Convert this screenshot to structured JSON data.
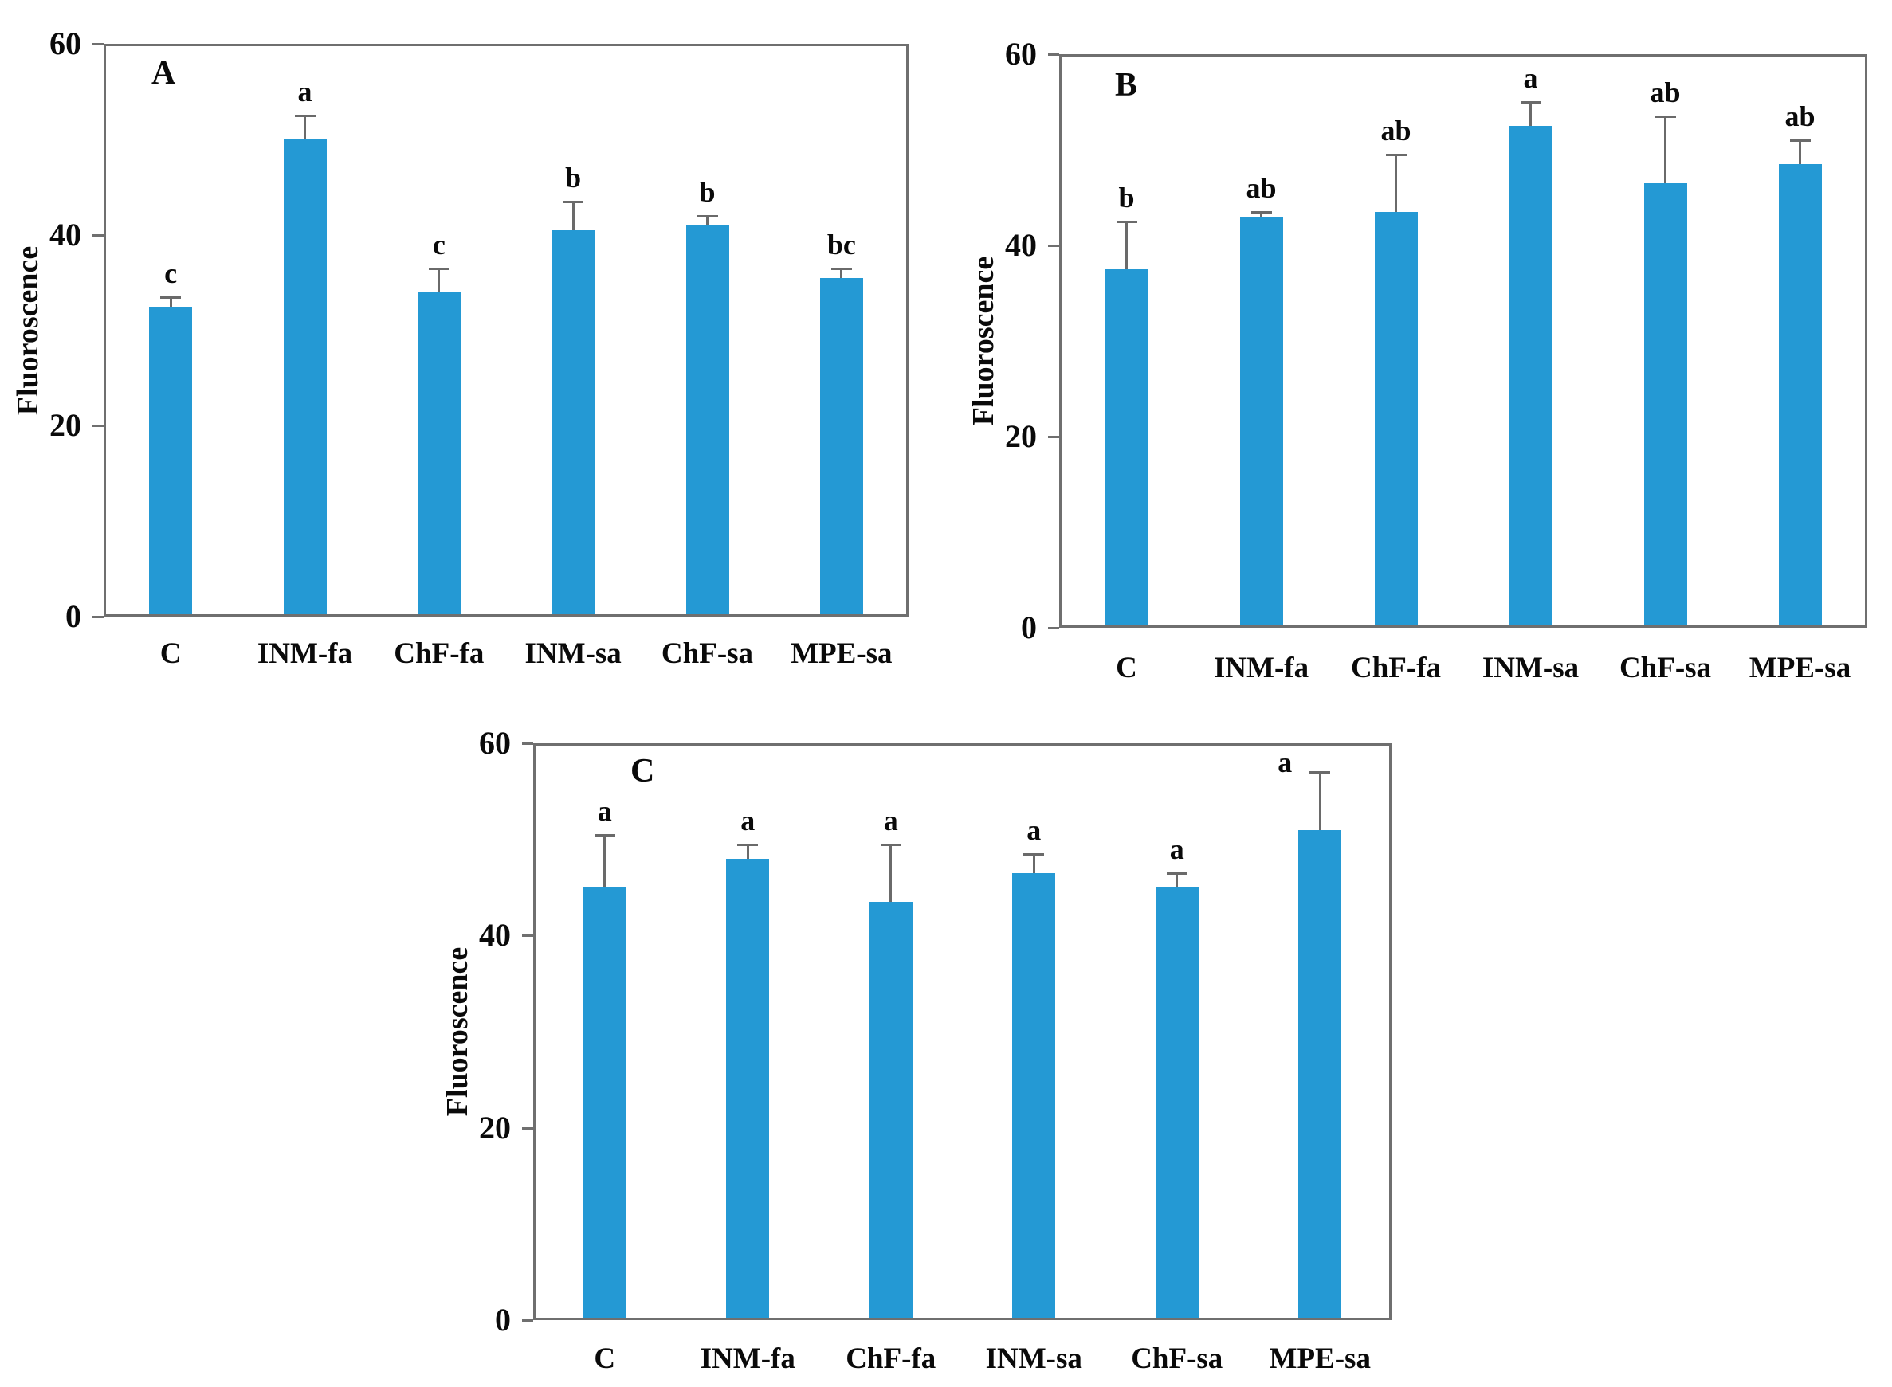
{
  "figure": {
    "background": "#ffffff",
    "bar_color": "#2499d4",
    "border_color": "#6f6f6f",
    "error_color": "#6a6a6a",
    "text_color": "#0a0a0a"
  },
  "chart_data": [
    {
      "type": "bar",
      "panel": "A",
      "title": "",
      "ylabel": "Fluoroscence",
      "xlabel": "",
      "ylim": [
        0,
        60
      ],
      "yticks": [
        "0",
        "20",
        "40",
        "60"
      ],
      "grid": false,
      "legend": "none",
      "categories": [
        "C",
        "INM-fa",
        "ChF-fa",
        "INM-sa",
        "ChF-sa",
        "MPE-sa"
      ],
      "values": [
        32.5,
        50,
        34,
        40.5,
        41,
        35.5
      ],
      "errors_plus": [
        1,
        2.5,
        2.5,
        3,
        1,
        1
      ],
      "sig_letters": [
        "c",
        "a",
        "c",
        "b",
        "b",
        "bc"
      ]
    },
    {
      "type": "bar",
      "panel": "B",
      "title": "",
      "ylabel": "Fluoroscence",
      "xlabel": "",
      "ylim": [
        0,
        60
      ],
      "yticks": [
        "0",
        "20",
        "40",
        "60"
      ],
      "grid": false,
      "legend": "none",
      "categories": [
        "C",
        "INM-fa",
        "ChF-fa",
        "INM-sa",
        "ChF-sa",
        "MPE-sa"
      ],
      "values": [
        37.5,
        43,
        43.5,
        52.5,
        46.5,
        48.5
      ],
      "errors_plus": [
        5,
        0.5,
        6,
        2.5,
        7,
        2.5
      ],
      "sig_letters": [
        "b",
        "ab",
        "ab",
        "a",
        "ab",
        "ab"
      ]
    },
    {
      "type": "bar",
      "panel": "C",
      "title": "",
      "ylabel": "Fluoroscence",
      "xlabel": "",
      "ylim": [
        0,
        60
      ],
      "yticks": [
        "0",
        "20",
        "40",
        "60"
      ],
      "grid": false,
      "legend": "none",
      "categories": [
        "C",
        "INM-fa",
        "ChF-fa",
        "INM-sa",
        "ChF-sa",
        "MPE-sa"
      ],
      "values": [
        45,
        48,
        43.5,
        46.5,
        45,
        51
      ],
      "errors_plus": [
        5.5,
        1.5,
        6,
        2,
        1.5,
        6
      ],
      "sig_letters": [
        "a",
        "a",
        "a",
        "a",
        "a",
        "a"
      ]
    }
  ]
}
